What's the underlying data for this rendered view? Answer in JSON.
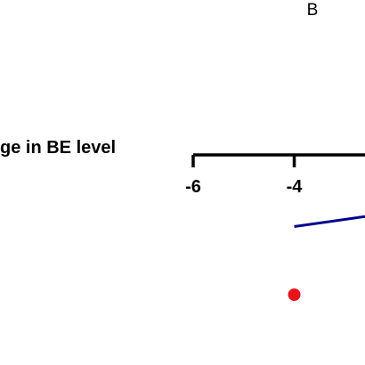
{
  "panel_label": "B",
  "chart_data": {
    "type": "line",
    "title": "",
    "xlabel": "ge in BE level",
    "xticks": [
      "-6",
      "-4"
    ],
    "xlim": [
      -6,
      -2.6
    ],
    "series": [
      {
        "kind": "line",
        "color": "#00008b",
        "x": [
          -4,
          -2.6
        ],
        "y": [
          0.75,
          0.86
        ]
      },
      {
        "kind": "point",
        "color": "#e8141c",
        "x": [
          -4
        ],
        "y": [
          0
        ]
      }
    ],
    "grid": false,
    "legend": "none"
  }
}
